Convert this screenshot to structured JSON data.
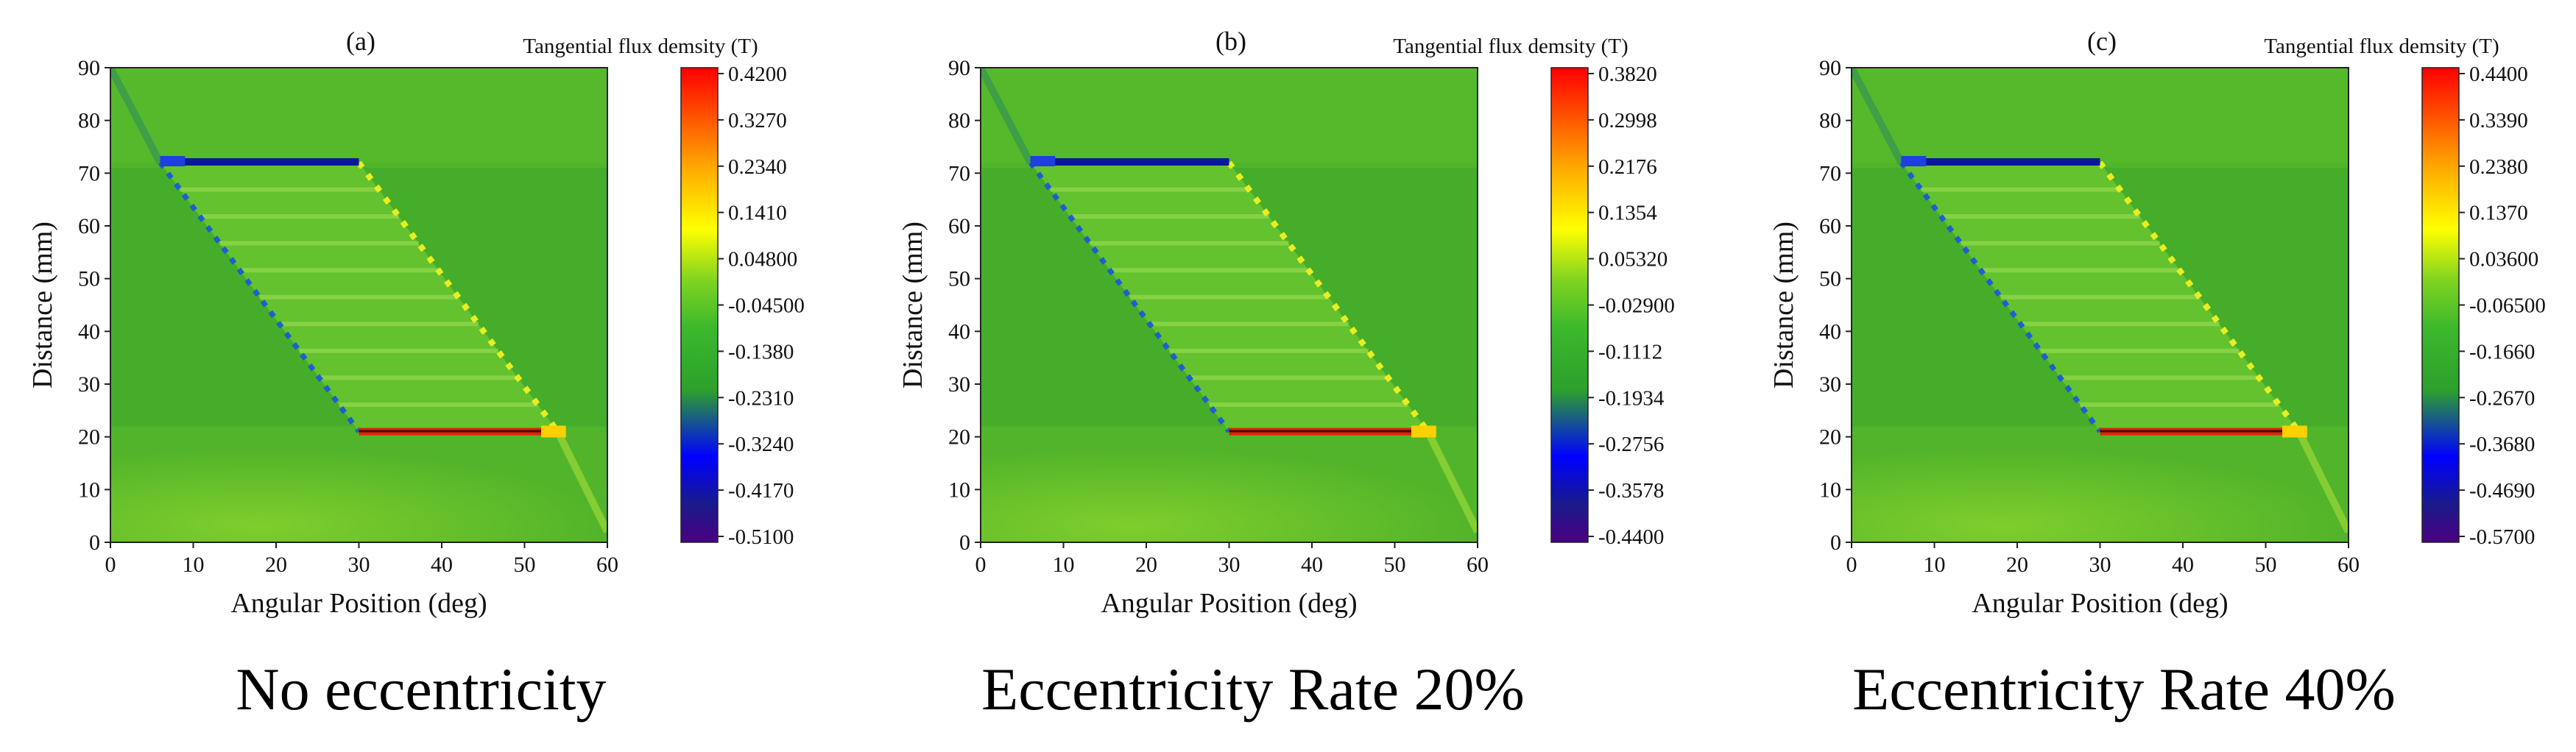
{
  "figure": {
    "panels": [
      {
        "letter": "(a)",
        "colorbar_title": "Tangential flux demsity (T)",
        "caption": "No eccentricity"
      },
      {
        "letter": "(b)",
        "colorbar_title": "Tangential flux demsity (T)",
        "caption": "Eccentricity Rate 20%"
      },
      {
        "letter": "(c)",
        "colorbar_title": "Tangential flux demsity (T)",
        "caption": "Eccentricity Rate 40%"
      }
    ]
  },
  "chart_data": [
    {
      "type": "heatmap",
      "title": "(a)",
      "xlabel": "Angular Position (deg)",
      "ylabel": "Distance (mm)",
      "xlim": [
        0,
        60
      ],
      "ylim": [
        0,
        90
      ],
      "xticks": [
        0,
        10,
        20,
        30,
        40,
        50,
        60
      ],
      "yticks": [
        0,
        10,
        20,
        30,
        40,
        50,
        60,
        70,
        80,
        90
      ],
      "colorbar_label": "Tangential flux demsity (T)",
      "colorbar_ticks": [
        "0.4200",
        "0.3270",
        "0.2340",
        "0.1410",
        "0.04800",
        "-0.04500",
        "-0.1380",
        "-0.2310",
        "-0.3240",
        "-0.4170",
        "-0.5100"
      ],
      "colorbar_range": [
        -0.51,
        0.42
      ],
      "features": {
        "upper_bar_y": 72,
        "upper_bar_x": [
          6,
          30
        ],
        "upper_bar_value": -0.5,
        "lower_bar_y": 21,
        "lower_bar_x": [
          30,
          54
        ],
        "lower_bar_value": 0.4,
        "slots": 10
      }
    },
    {
      "type": "heatmap",
      "title": "(b)",
      "xlabel": "Angular Position (deg)",
      "ylabel": "Distance (mm)",
      "xlim": [
        0,
        60
      ],
      "ylim": [
        0,
        90
      ],
      "xticks": [
        0,
        10,
        20,
        30,
        40,
        50,
        60
      ],
      "yticks": [
        0,
        10,
        20,
        30,
        40,
        50,
        60,
        70,
        80,
        90
      ],
      "colorbar_label": "Tangential flux demsity (T)",
      "colorbar_ticks": [
        "0.3820",
        "0.2998",
        "0.2176",
        "0.1354",
        "0.05320",
        "-0.02900",
        "-0.1112",
        "-0.1934",
        "-0.2756",
        "-0.3578",
        "-0.4400"
      ],
      "colorbar_range": [
        -0.44,
        0.382
      ],
      "features": {
        "upper_bar_y": 72,
        "upper_bar_x": [
          6,
          30
        ],
        "upper_bar_value": -0.44,
        "lower_bar_y": 21,
        "lower_bar_x": [
          30,
          54
        ],
        "lower_bar_value": 0.38,
        "slots": 10
      }
    },
    {
      "type": "heatmap",
      "title": "(c)",
      "xlabel": "Angular Position (deg)",
      "ylabel": "Distance (mm)",
      "xlim": [
        0,
        60
      ],
      "ylim": [
        0,
        90
      ],
      "xticks": [
        0,
        10,
        20,
        30,
        40,
        50,
        60
      ],
      "yticks": [
        0,
        10,
        20,
        30,
        40,
        50,
        60,
        70,
        80,
        90
      ],
      "colorbar_label": "Tangential flux demsity (T)",
      "colorbar_ticks": [
        "0.4400",
        "0.3390",
        "0.2380",
        "0.1370",
        "0.03600",
        "-0.06500",
        "-0.1660",
        "-0.2670",
        "-0.3680",
        "-0.4690",
        "-0.5700"
      ],
      "colorbar_range": [
        -0.57,
        0.44
      ],
      "features": {
        "upper_bar_y": 72,
        "upper_bar_x": [
          6,
          30
        ],
        "upper_bar_value": -0.57,
        "lower_bar_y": 21,
        "lower_bar_x": [
          30,
          54
        ],
        "lower_bar_value": 0.44,
        "slots": 10
      }
    }
  ]
}
